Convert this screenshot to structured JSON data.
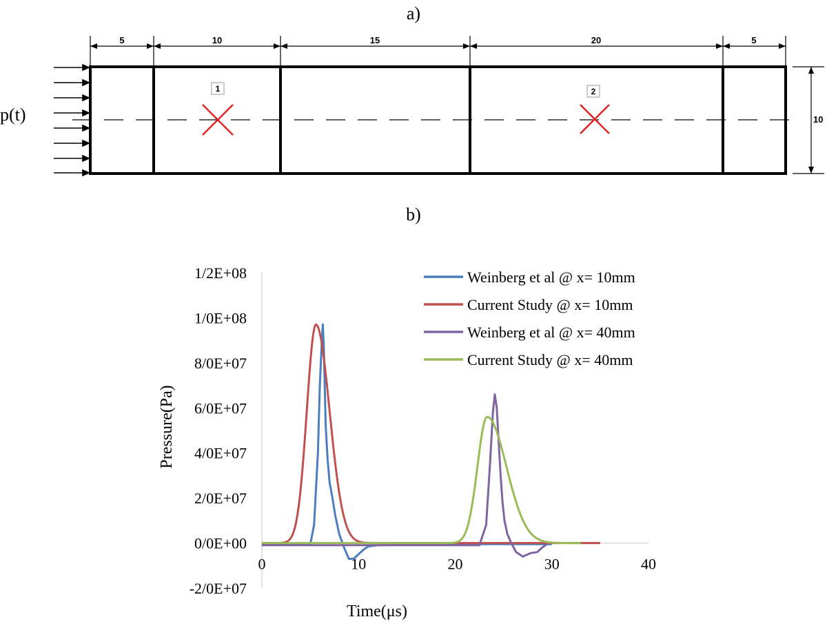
{
  "panels": {
    "a": "a)",
    "b": "b)"
  },
  "diagram": {
    "load_label": "p(t)",
    "segments": [
      "5",
      "10",
      "15",
      "20",
      "5"
    ],
    "height_label": "10",
    "gauges": [
      "1",
      "2"
    ],
    "colors": {
      "frame": "#000000",
      "gauge_mark": "#dd2222"
    }
  },
  "chart_data": {
    "type": "line",
    "xlabel": "Time(μs)",
    "ylabel": "Pressure(Pa)",
    "xlim": [
      0,
      40
    ],
    "ylim": [
      -20000000,
      120000000
    ],
    "xticks": [
      "0",
      "10",
      "20",
      "30",
      "40"
    ],
    "yticks": [
      {
        "v": 120000000,
        "label": "1/2E+08"
      },
      {
        "v": 100000000,
        "label": "1/0E+08"
      },
      {
        "v": 80000000,
        "label": "8/0E+07"
      },
      {
        "v": 60000000,
        "label": "6/0E+07"
      },
      {
        "v": 40000000,
        "label": "4/0E+07"
      },
      {
        "v": 20000000,
        "label": "2/0E+07"
      },
      {
        "v": 0,
        "label": "0/0E+00"
      },
      {
        "v": -20000000,
        "label": "-2/0E+07"
      }
    ],
    "grid": false,
    "legend_position": "top-right",
    "series": [
      {
        "name": "Weinberg et al @ x= 10mm",
        "color": "#4a7ebf",
        "x": [
          0,
          5.0,
          5.4,
          5.8,
          6.0,
          6.2,
          6.3,
          6.4,
          6.5,
          6.6,
          6.8,
          7.0,
          7.3,
          7.6,
          8.0,
          8.5,
          9.0,
          9.5,
          10.0,
          10.5,
          11,
          12,
          14,
          16,
          18,
          20,
          22,
          24,
          26,
          28,
          30
        ],
        "y": [
          -800000,
          -800000,
          8000000,
          40000000,
          70000000,
          90000000,
          97000000,
          88000000,
          70000000,
          52000000,
          37000000,
          27000000,
          20000000,
          12000000,
          4000000,
          -2000000,
          -7000000,
          -7000000,
          -5000000,
          -3000000,
          -1500000,
          -1000000,
          -800000,
          -600000,
          -500000,
          -500000,
          -500000,
          -500000,
          -500000,
          -500000,
          -500000
        ]
      },
      {
        "name": "Current Study @ x= 10mm",
        "color": "#c0504d",
        "type": "gaussian",
        "baseline": 0,
        "amp": 97000000,
        "mu": 5.6,
        "sigma_left": 0.95,
        "sigma_right": 1.4,
        "x_range": [
          0,
          35
        ]
      },
      {
        "name": "Weinberg et al @ x= 40mm",
        "color": "#8064a2",
        "x": [
          0,
          10,
          20,
          22.5,
          23.2,
          23.6,
          23.9,
          24.1,
          24.3,
          24.5,
          24.7,
          24.9,
          25.1,
          25.4,
          25.8,
          26.3,
          27.0,
          27.8,
          28.5,
          29.0,
          29.5
        ],
        "y": [
          -1000000,
          -1000000,
          -1000000,
          -1000000,
          8000000,
          35000000,
          58000000,
          66000000,
          60000000,
          45000000,
          30000000,
          18000000,
          10000000,
          4000000,
          0,
          -4000000,
          -6000000,
          -4500000,
          -4000000,
          -2000000,
          -500000
        ]
      },
      {
        "name": "Current Study @ x= 40mm",
        "color": "#9bbb59",
        "type": "gaussian",
        "baseline": 0,
        "amp": 56000000,
        "mu": 23.3,
        "sigma_left": 1.0,
        "sigma_right": 2.0,
        "x_range": [
          0,
          33
        ]
      }
    ]
  }
}
